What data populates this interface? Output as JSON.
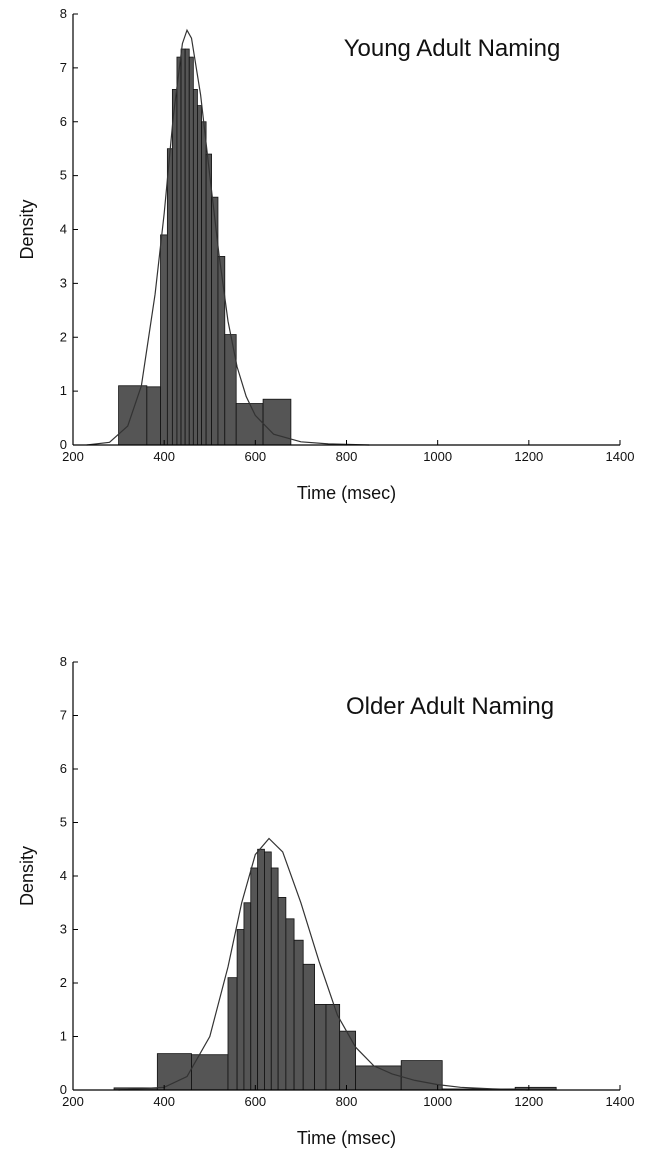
{
  "chart_data": [
    {
      "type": "bar",
      "title": "Young Adult Naming",
      "xlabel": "Time (msec)",
      "ylabel": "Density",
      "xlim": [
        200,
        1400
      ],
      "ylim": [
        0,
        8
      ],
      "xticks": [
        "200",
        "400",
        "600",
        "800",
        "1000",
        "1200",
        "1400"
      ],
      "yticks": [
        "0",
        "1",
        "2",
        "3",
        "4",
        "5",
        "6",
        "7",
        "8"
      ],
      "bins": [
        {
          "x0": 300,
          "x1": 362,
          "y": 1.1
        },
        {
          "x0": 362,
          "x1": 392,
          "y": 1.08
        },
        {
          "x0": 392,
          "x1": 407,
          "y": 3.9
        },
        {
          "x0": 407,
          "x1": 418,
          "y": 5.5
        },
        {
          "x0": 418,
          "x1": 428,
          "y": 6.6
        },
        {
          "x0": 428,
          "x1": 437,
          "y": 7.2
        },
        {
          "x0": 437,
          "x1": 446,
          "y": 7.35
        },
        {
          "x0": 446,
          "x1": 455,
          "y": 7.35
        },
        {
          "x0": 455,
          "x1": 464,
          "y": 7.2
        },
        {
          "x0": 464,
          "x1": 473,
          "y": 6.6
        },
        {
          "x0": 473,
          "x1": 482,
          "y": 6.3
        },
        {
          "x0": 482,
          "x1": 492,
          "y": 6.0
        },
        {
          "x0": 492,
          "x1": 504,
          "y": 5.4
        },
        {
          "x0": 504,
          "x1": 518,
          "y": 4.6
        },
        {
          "x0": 518,
          "x1": 533,
          "y": 3.5
        },
        {
          "x0": 533,
          "x1": 558,
          "y": 2.05
        },
        {
          "x0": 558,
          "x1": 617,
          "y": 0.77
        },
        {
          "x0": 617,
          "x1": 678,
          "y": 0.85
        }
      ],
      "curve": [
        [
          230,
          0.0
        ],
        [
          280,
          0.05
        ],
        [
          320,
          0.35
        ],
        [
          350,
          1.1
        ],
        [
          380,
          2.8
        ],
        [
          400,
          4.3
        ],
        [
          420,
          6.1
        ],
        [
          440,
          7.45
        ],
        [
          450,
          7.7
        ],
        [
          460,
          7.55
        ],
        [
          480,
          6.5
        ],
        [
          500,
          5.0
        ],
        [
          520,
          3.55
        ],
        [
          540,
          2.3
        ],
        [
          560,
          1.45
        ],
        [
          580,
          0.9
        ],
        [
          600,
          0.55
        ],
        [
          640,
          0.2
        ],
        [
          700,
          0.06
        ],
        [
          760,
          0.02
        ],
        [
          850,
          0.0
        ]
      ]
    },
    {
      "type": "bar",
      "title": "Older Adult Naming",
      "xlabel": "Time (msec)",
      "ylabel": "Density",
      "xlim": [
        200,
        1400
      ],
      "ylim": [
        0,
        8
      ],
      "xticks": [
        "200",
        "400",
        "600",
        "800",
        "1000",
        "1200",
        "1400"
      ],
      "yticks": [
        "0",
        "1",
        "2",
        "3",
        "4",
        "5",
        "6",
        "7",
        "8"
      ],
      "bins": [
        {
          "x0": 290,
          "x1": 385,
          "y": 0.04
        },
        {
          "x0": 385,
          "x1": 460,
          "y": 0.68
        },
        {
          "x0": 460,
          "x1": 540,
          "y": 0.66
        },
        {
          "x0": 540,
          "x1": 560,
          "y": 2.1
        },
        {
          "x0": 560,
          "x1": 575,
          "y": 3.0
        },
        {
          "x0": 575,
          "x1": 590,
          "y": 3.5
        },
        {
          "x0": 590,
          "x1": 605,
          "y": 4.15
        },
        {
          "x0": 605,
          "x1": 620,
          "y": 4.5
        },
        {
          "x0": 620,
          "x1": 635,
          "y": 4.45
        },
        {
          "x0": 635,
          "x1": 650,
          "y": 4.15
        },
        {
          "x0": 650,
          "x1": 667,
          "y": 3.6
        },
        {
          "x0": 667,
          "x1": 685,
          "y": 3.2
        },
        {
          "x0": 685,
          "x1": 705,
          "y": 2.8
        },
        {
          "x0": 705,
          "x1": 730,
          "y": 2.35
        },
        {
          "x0": 730,
          "x1": 755,
          "y": 1.6
        },
        {
          "x0": 755,
          "x1": 785,
          "y": 1.6
        },
        {
          "x0": 785,
          "x1": 820,
          "y": 1.1
        },
        {
          "x0": 820,
          "x1": 920,
          "y": 0.45
        },
        {
          "x0": 920,
          "x1": 1010,
          "y": 0.55
        },
        {
          "x0": 1010,
          "x1": 1170,
          "y": 0.02
        },
        {
          "x0": 1170,
          "x1": 1260,
          "y": 0.05
        }
      ],
      "curve": [
        [
          300,
          0.0
        ],
        [
          400,
          0.05
        ],
        [
          450,
          0.25
        ],
        [
          500,
          1.0
        ],
        [
          540,
          2.3
        ],
        [
          570,
          3.5
        ],
        [
          600,
          4.4
        ],
        [
          630,
          4.7
        ],
        [
          660,
          4.45
        ],
        [
          700,
          3.5
        ],
        [
          740,
          2.4
        ],
        [
          780,
          1.4
        ],
        [
          820,
          0.8
        ],
        [
          860,
          0.45
        ],
        [
          900,
          0.3
        ],
        [
          950,
          0.18
        ],
        [
          1000,
          0.1
        ],
        [
          1050,
          0.05
        ],
        [
          1120,
          0.02
        ],
        [
          1200,
          0.0
        ]
      ]
    }
  ]
}
